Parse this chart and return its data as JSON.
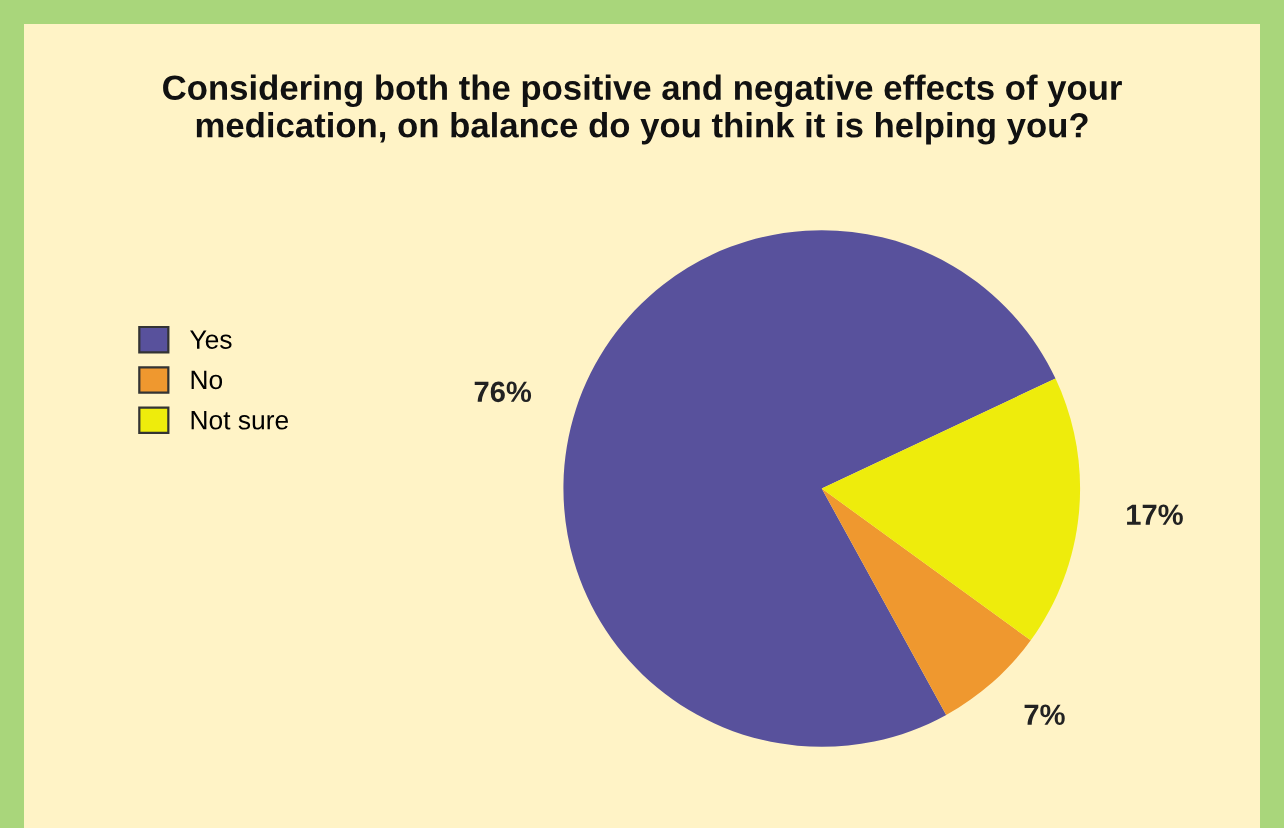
{
  "chart_data": {
    "type": "pie",
    "title": "Considering both the positive and negative effects of your\nmedication, on balance do you think it is helping you?",
    "categories": [
      "Yes",
      "No",
      "Not sure"
    ],
    "values": [
      76,
      7,
      17
    ],
    "value_labels": [
      "76%",
      "7%",
      "17%"
    ],
    "colors": [
      "#58519c",
      "#ef982f",
      "#eeec0c"
    ],
    "legend": "left"
  }
}
